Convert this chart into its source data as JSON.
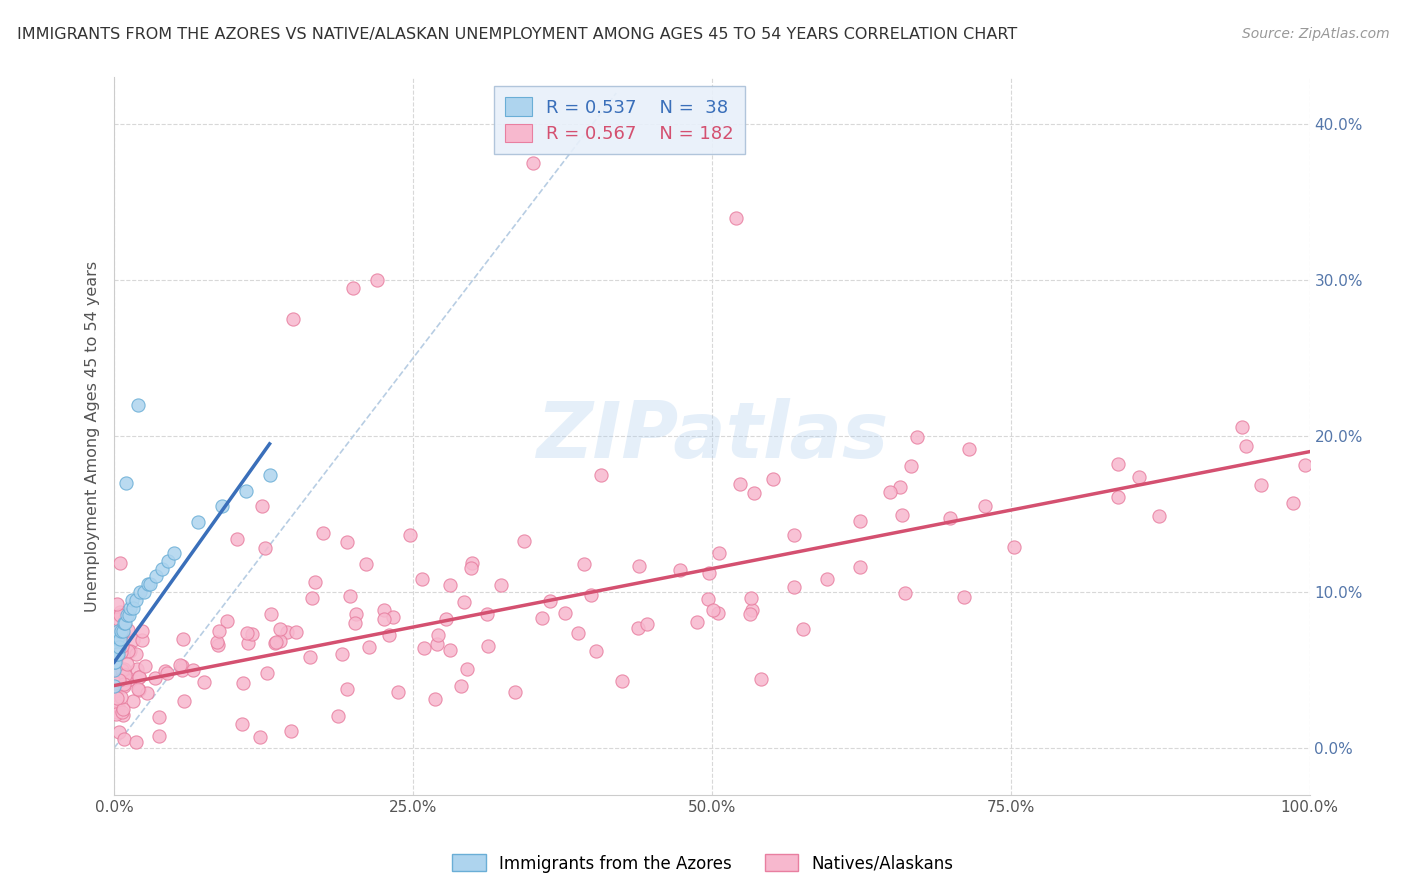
{
  "title": "IMMIGRANTS FROM THE AZORES VS NATIVE/ALASKAN UNEMPLOYMENT AMONG AGES 45 TO 54 YEARS CORRELATION CHART",
  "source": "Source: ZipAtlas.com",
  "ylabel": "Unemployment Among Ages 45 to 54 years",
  "xlim": [
    0,
    1.0
  ],
  "ylim": [
    -0.03,
    0.43
  ],
  "xticks": [
    0.0,
    0.25,
    0.5,
    0.75,
    1.0
  ],
  "xticklabels": [
    "0.0%",
    "25.0%",
    "50.0%",
    "75.0%",
    "100.0%"
  ],
  "yticks": [
    0.0,
    0.1,
    0.2,
    0.3,
    0.4
  ],
  "yticklabels": [
    "0.0%",
    "10.0%",
    "20.0%",
    "30.0%",
    "40.0%"
  ],
  "azores_color": "#aed4ee",
  "natives_color": "#f7b8ce",
  "azores_edge": "#6aaed6",
  "natives_edge": "#e87fa0",
  "trend_azores_color": "#3a6fba",
  "trend_natives_color": "#d45070",
  "diag_color": "#b0c8e0",
  "watermark": "ZIPatlas",
  "background_color": "#ffffff",
  "grid_color": "#d8d8d8",
  "legend_box_color": "#e8f0fa",
  "legend_edge_color": "#aac0d8"
}
